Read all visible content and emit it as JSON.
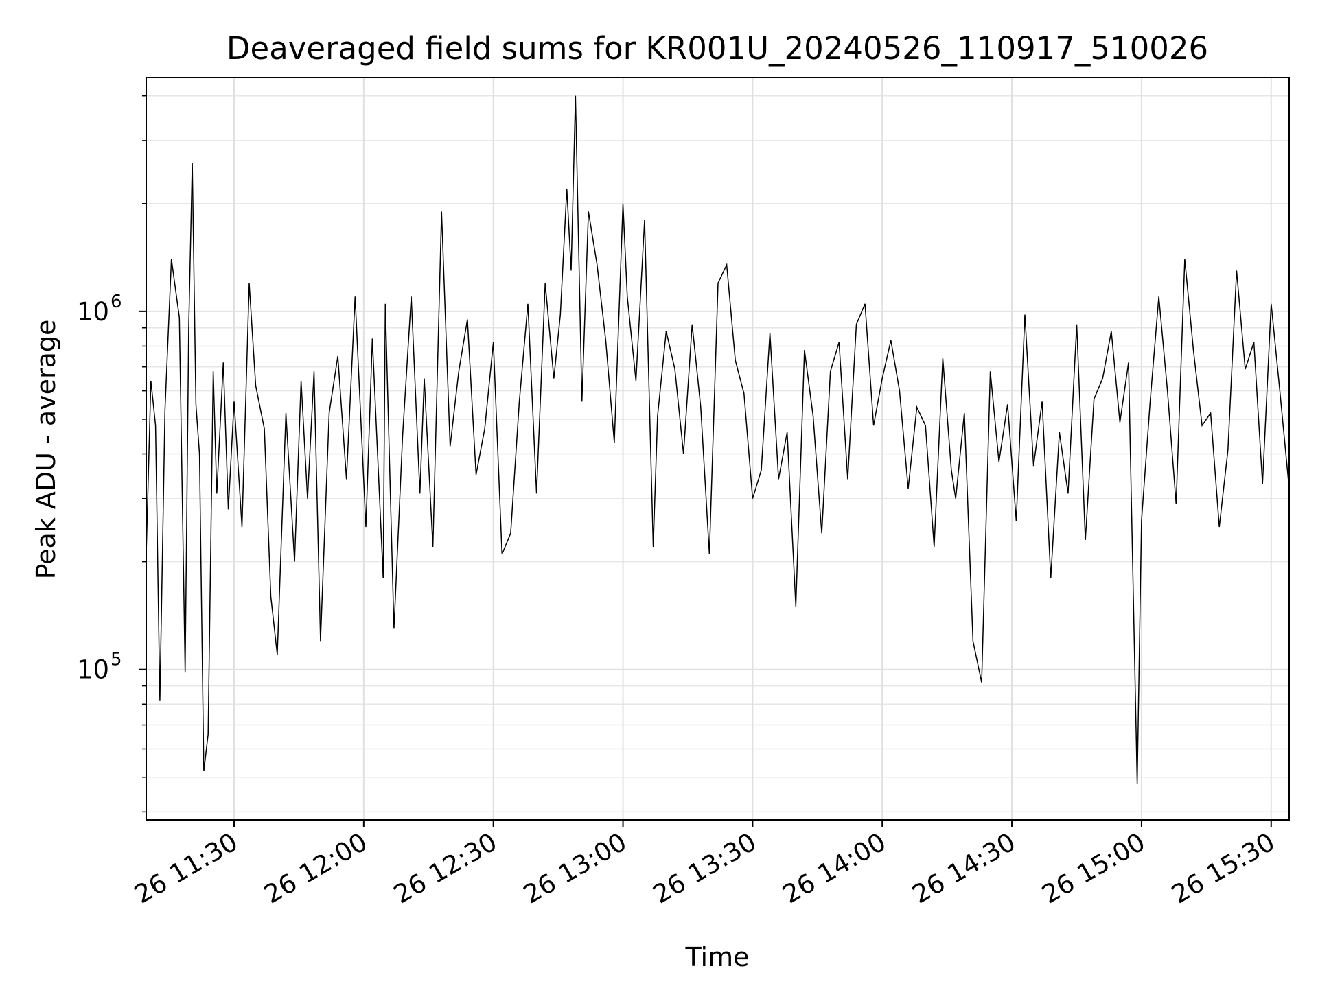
{
  "chart_data": {
    "type": "line",
    "title": "Deaveraged field sums for KR001U_20240526_110917_510026",
    "xlabel": "Time",
    "ylabel": "Peak ADU - average",
    "yscale": "log",
    "ylim": [
      38000,
      4500000
    ],
    "xlim": [
      "2024-05-26 11:09:40",
      "2024-05-26 15:34:10"
    ],
    "grid": true,
    "legend": null,
    "line_color": "#000000",
    "xticks": [
      {
        "t": "2024-05-26 11:30",
        "label": "26 11:30"
      },
      {
        "t": "2024-05-26 12:00",
        "label": "26 12:00"
      },
      {
        "t": "2024-05-26 12:30",
        "label": "26 12:30"
      },
      {
        "t": "2024-05-26 13:00",
        "label": "26 13:00"
      },
      {
        "t": "2024-05-26 13:30",
        "label": "26 13:30"
      },
      {
        "t": "2024-05-26 14:00",
        "label": "26 14:00"
      },
      {
        "t": "2024-05-26 14:30",
        "label": "26 14:30"
      },
      {
        "t": "2024-05-26 15:00",
        "label": "26 15:00"
      },
      {
        "t": "2024-05-26 15:30",
        "label": "26 15:30"
      }
    ],
    "yticks": [
      {
        "value": 100000,
        "base": "10",
        "exp": "5"
      },
      {
        "value": 1000000,
        "base": "10",
        "exp": "6"
      }
    ],
    "series": [
      {
        "x": [
          "2024-05-26 11:09:40",
          "2024-05-26 11:10:45",
          "2024-05-26 11:11:50",
          "2024-05-26 11:12:50",
          "2024-05-26 11:14:00",
          "2024-05-26 11:15:30",
          "2024-05-26 11:17:20",
          "2024-05-26 11:18:40",
          "2024-05-26 11:19:30",
          "2024-05-26 11:20:20",
          "2024-05-26 11:21:10",
          "2024-05-26 11:22:00",
          "2024-05-26 11:23:00",
          "2024-05-26 11:24:00",
          "2024-05-26 11:25:10",
          "2024-05-26 11:26:00",
          "2024-05-26 11:27:30",
          "2024-05-26 11:28:40",
          "2024-05-26 11:30:00",
          "2024-05-26 11:31:50",
          "2024-05-26 11:33:30",
          "2024-05-26 11:35:00",
          "2024-05-26 11:37:00",
          "2024-05-26 11:38:30",
          "2024-05-26 11:40:00",
          "2024-05-26 11:42:00",
          "2024-05-26 11:44:00",
          "2024-05-26 11:45:30",
          "2024-05-26 11:47:00",
          "2024-05-26 11:48:30",
          "2024-05-26 11:50:00",
          "2024-05-26 11:52:00",
          "2024-05-26 11:54:00",
          "2024-05-26 11:56:00",
          "2024-05-26 11:58:00",
          "2024-05-26 12:00:30",
          "2024-05-26 12:02:00",
          "2024-05-26 12:04:30",
          "2024-05-26 12:05:00",
          "2024-05-26 12:07:00",
          "2024-05-26 12:09:00",
          "2024-05-26 12:11:00",
          "2024-05-26 12:13:00",
          "2024-05-26 12:14:00",
          "2024-05-26 12:16:00",
          "2024-05-26 12:18:00",
          "2024-05-26 12:20:00",
          "2024-05-26 12:22:00",
          "2024-05-26 12:24:00",
          "2024-05-26 12:26:00",
          "2024-05-26 12:28:00",
          "2024-05-26 12:30:00",
          "2024-05-26 12:32:00",
          "2024-05-26 12:34:00",
          "2024-05-26 12:36:00",
          "2024-05-26 12:38:00",
          "2024-05-26 12:40:00",
          "2024-05-26 12:42:00",
          "2024-05-26 12:44:00",
          "2024-05-26 12:45:30",
          "2024-05-26 12:47:00",
          "2024-05-26 12:48:00",
          "2024-05-26 12:49:00",
          "2024-05-26 12:50:30",
          "2024-05-26 12:52:00",
          "2024-05-26 12:54:00",
          "2024-05-26 12:56:00",
          "2024-05-26 12:58:00",
          "2024-05-26 13:00:00",
          "2024-05-26 13:01:00",
          "2024-05-26 13:03:00",
          "2024-05-26 13:05:00",
          "2024-05-26 13:07:00",
          "2024-05-26 13:08:00",
          "2024-05-26 13:10:00",
          "2024-05-26 13:12:00",
          "2024-05-26 13:14:00",
          "2024-05-26 13:16:00",
          "2024-05-26 13:18:00",
          "2024-05-26 13:20:00",
          "2024-05-26 13:22:00",
          "2024-05-26 13:24:00",
          "2024-05-26 13:26:00",
          "2024-05-26 13:28:00",
          "2024-05-26 13:30:00",
          "2024-05-26 13:32:00",
          "2024-05-26 13:34:00",
          "2024-05-26 13:36:00",
          "2024-05-26 13:38:00",
          "2024-05-26 13:40:00",
          "2024-05-26 13:42:00",
          "2024-05-26 13:44:00",
          "2024-05-26 13:46:00",
          "2024-05-26 13:48:00",
          "2024-05-26 13:50:00",
          "2024-05-26 13:52:00",
          "2024-05-26 13:54:00",
          "2024-05-26 13:56:00",
          "2024-05-26 13:58:00",
          "2024-05-26 14:00:00",
          "2024-05-26 14:02:00",
          "2024-05-26 14:04:00",
          "2024-05-26 14:06:00",
          "2024-05-26 14:08:00",
          "2024-05-26 14:10:00",
          "2024-05-26 14:12:00",
          "2024-05-26 14:14:00",
          "2024-05-26 14:16:00",
          "2024-05-26 14:17:00",
          "2024-05-26 14:19:00",
          "2024-05-26 14:21:00",
          "2024-05-26 14:23:00",
          "2024-05-26 14:25:00",
          "2024-05-26 14:27:00",
          "2024-05-26 14:29:00",
          "2024-05-26 14:31:00",
          "2024-05-26 14:33:00",
          "2024-05-26 14:35:00",
          "2024-05-26 14:37:00",
          "2024-05-26 14:39:00",
          "2024-05-26 14:41:00",
          "2024-05-26 14:43:00",
          "2024-05-26 14:45:00",
          "2024-05-26 14:47:00",
          "2024-05-26 14:49:00",
          "2024-05-26 14:51:00",
          "2024-05-26 14:53:00",
          "2024-05-26 14:55:00",
          "2024-05-26 14:57:00",
          "2024-05-26 14:59:00",
          "2024-05-26 15:00:00",
          "2024-05-26 15:02:00",
          "2024-05-26 15:04:00",
          "2024-05-26 15:06:00",
          "2024-05-26 15:08:00",
          "2024-05-26 15:10:00",
          "2024-05-26 15:12:00",
          "2024-05-26 15:14:00",
          "2024-05-26 15:16:00",
          "2024-05-26 15:18:00",
          "2024-05-26 15:20:00",
          "2024-05-26 15:22:00",
          "2024-05-26 15:24:00",
          "2024-05-26 15:26:00",
          "2024-05-26 15:28:00",
          "2024-05-26 15:30:00",
          "2024-05-26 15:32:00",
          "2024-05-26 15:34:10"
        ],
        "y": [
          210000,
          640000,
          480000,
          82000,
          530000,
          1400000,
          960000,
          98000,
          900000,
          2600000,
          550000,
          400000,
          52000,
          66000,
          680000,
          310000,
          720000,
          280000,
          560000,
          250000,
          1200000,
          620000,
          470000,
          160000,
          110000,
          520000,
          200000,
          640000,
          300000,
          680000,
          120000,
          520000,
          750000,
          340000,
          1100000,
          250000,
          840000,
          180000,
          1050000,
          130000,
          450000,
          1100000,
          310000,
          650000,
          220000,
          1900000,
          420000,
          680000,
          950000,
          350000,
          470000,
          820000,
          210000,
          240000,
          560000,
          1050000,
          310000,
          1200000,
          650000,
          980000,
          2200000,
          1300000,
          4000000,
          560000,
          1900000,
          1350000,
          830000,
          430000,
          2000000,
          1100000,
          640000,
          1800000,
          220000,
          510000,
          880000,
          690000,
          400000,
          920000,
          540000,
          210000,
          1200000,
          1350000,
          730000,
          590000,
          300000,
          360000,
          870000,
          340000,
          460000,
          150000,
          780000,
          510000,
          240000,
          680000,
          820000,
          340000,
          920000,
          1050000,
          480000,
          650000,
          830000,
          600000,
          320000,
          540000,
          480000,
          220000,
          740000,
          360000,
          300000,
          520000,
          120000,
          92000,
          680000,
          380000,
          550000,
          260000,
          980000,
          370000,
          560000,
          180000,
          460000,
          310000,
          920000,
          230000,
          570000,
          650000,
          880000,
          490000,
          720000,
          48000,
          260000,
          560000,
          1100000,
          600000,
          290000,
          1400000,
          780000,
          480000,
          520000,
          250000,
          410000,
          1300000,
          690000,
          820000,
          330000,
          1050000,
          600000,
          320000
        ]
      }
    ]
  }
}
